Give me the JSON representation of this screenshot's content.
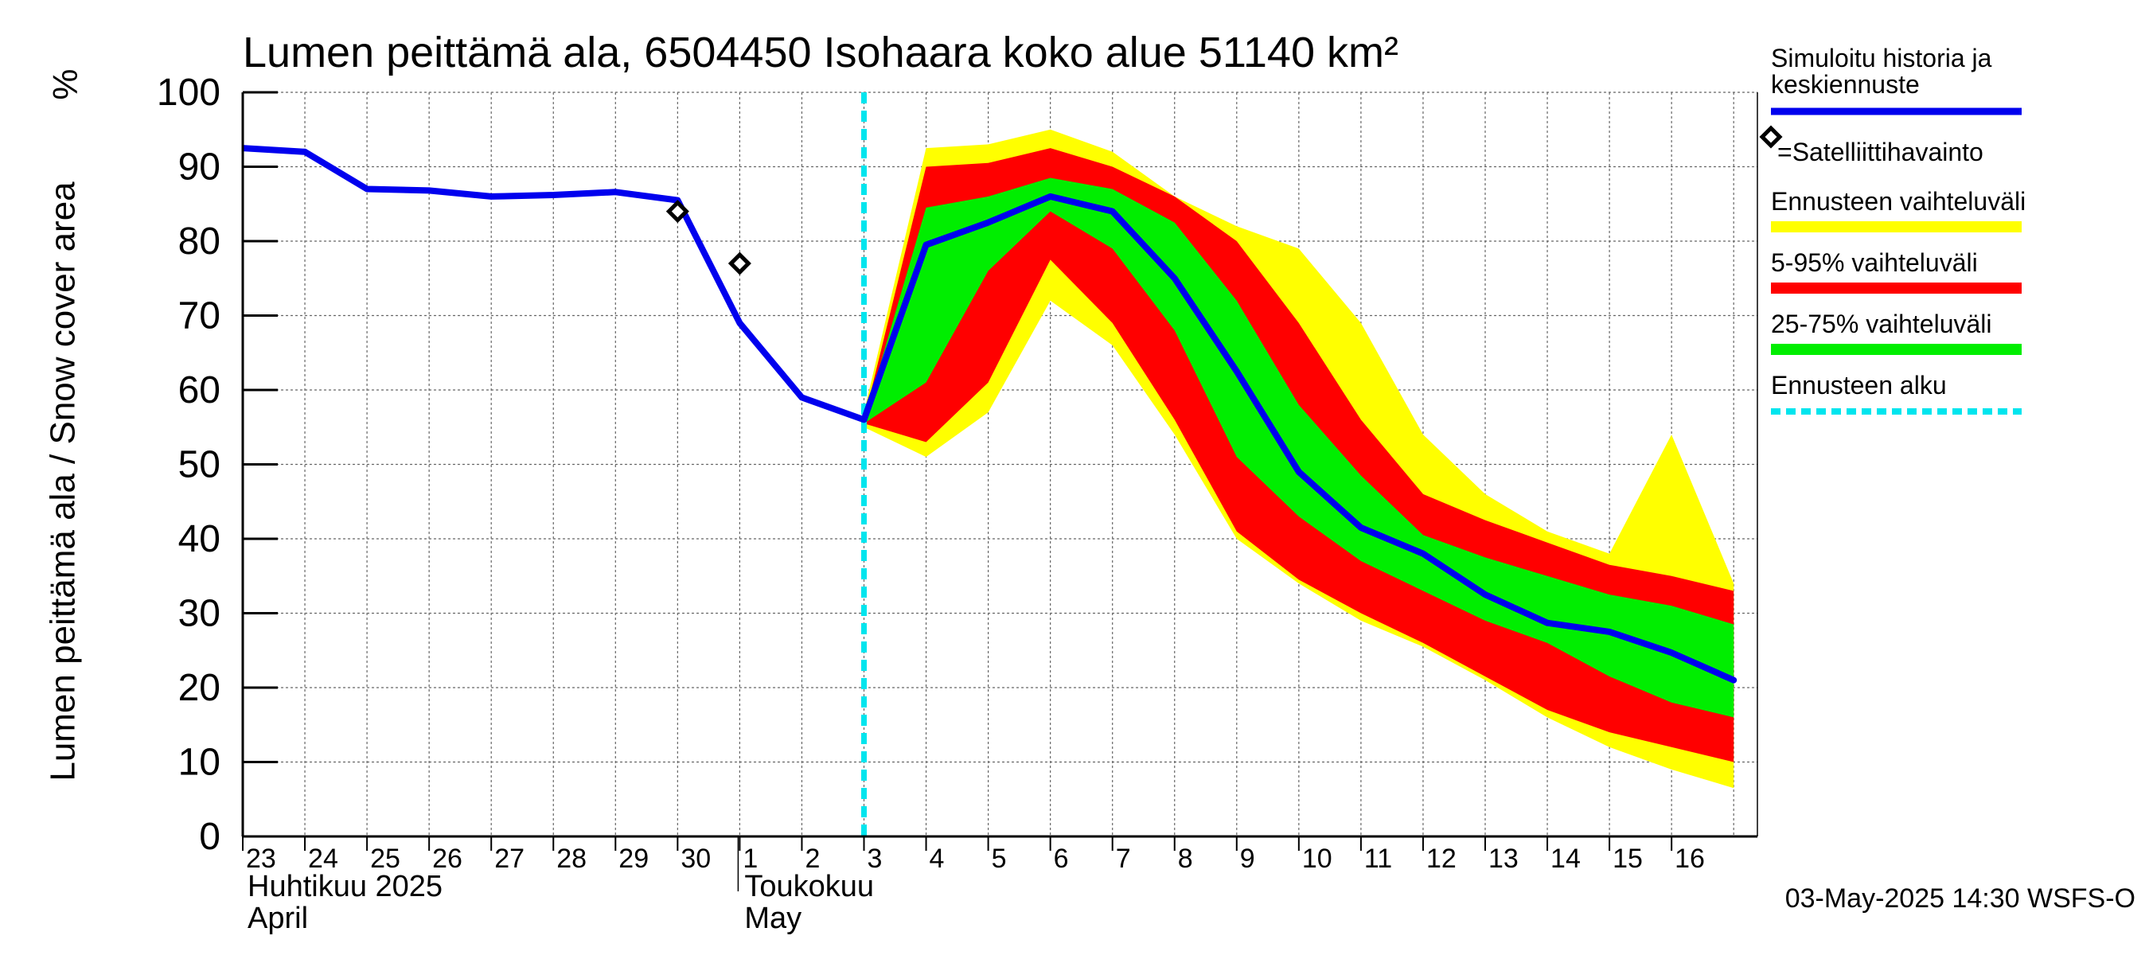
{
  "chart_data": {
    "type": "area",
    "title": "Lumen peittämä ala, 6504450 Isohaara koko alue 51140 km²",
    "ylabel": "Lumen peittämä ala / Snow cover area",
    "yunit": "%",
    "ylim": [
      0,
      100
    ],
    "yticks": [
      0,
      10,
      20,
      30,
      40,
      50,
      60,
      70,
      80,
      90,
      100
    ],
    "x_dates": [
      "23",
      "24",
      "25",
      "26",
      "27",
      "28",
      "29",
      "30",
      "1",
      "2",
      "3",
      "4",
      "5",
      "6",
      "7",
      "8",
      "9",
      "10",
      "11",
      "12",
      "13",
      "14",
      "15",
      "16"
    ],
    "month_labels": [
      {
        "fi": "Huhtikuu  2025",
        "en": "April"
      },
      {
        "fi": "Toukokuu",
        "en": "May"
      }
    ],
    "forecast_start_day": 10,
    "series": [
      {
        "name": "Ennusteen vaihteluväli",
        "kind": "band",
        "color": "#ffff00",
        "x": [
          10,
          11,
          12,
          13,
          14,
          15,
          16,
          17,
          18,
          19,
          20,
          21,
          22,
          23,
          24
        ],
        "upper": [
          57,
          92.5,
          93,
          95,
          92,
          86,
          82,
          79,
          69,
          54,
          46,
          41,
          38,
          54,
          34
        ],
        "lower": [
          55,
          51,
          57,
          72,
          66,
          54,
          40,
          34,
          29,
          25.5,
          21,
          16,
          12,
          9,
          6.5
        ]
      },
      {
        "name": "5-95% vaihteluväli",
        "kind": "band",
        "color": "#ff0000",
        "x": [
          10,
          11,
          12,
          13,
          14,
          15,
          16,
          17,
          18,
          19,
          20,
          21,
          22,
          23,
          24
        ],
        "upper": [
          56,
          90,
          90.5,
          92.5,
          90,
          86,
          80,
          69,
          56,
          46,
          42.5,
          39.5,
          36.5,
          35,
          33
        ],
        "lower": [
          55.5,
          53,
          61,
          77.5,
          69,
          56,
          41,
          34.5,
          30,
          26,
          21.5,
          17,
          14,
          12,
          10
        ]
      },
      {
        "name": "25-75% vaihteluväli",
        "kind": "band",
        "color": "#00ee00",
        "x": [
          10,
          11,
          12,
          13,
          14,
          15,
          16,
          17,
          18,
          19,
          20,
          21,
          22,
          23,
          24
        ],
        "upper": [
          56,
          84.5,
          86,
          88.5,
          87,
          82.5,
          72,
          58,
          48.5,
          40.5,
          37.5,
          35,
          32.5,
          31,
          28.5
        ],
        "lower": [
          55.5,
          61,
          76,
          84,
          79,
          68,
          51,
          43,
          37,
          33,
          29,
          26,
          21.5,
          18,
          16
        ]
      },
      {
        "name": "Simuloitu historia ja keskiennuste",
        "kind": "line",
        "color": "#0000ee",
        "x": [
          0,
          1,
          2,
          3,
          4,
          5,
          6,
          7,
          8,
          9,
          10,
          11,
          12,
          13,
          14,
          15,
          16,
          17,
          18,
          19,
          20,
          21,
          22,
          23,
          24
        ],
        "values": [
          92.5,
          92,
          87,
          86.8,
          86,
          86.2,
          86.6,
          85.5,
          69,
          59,
          56,
          79.5,
          82.5,
          86,
          84,
          75,
          62.5,
          49,
          41.5,
          38,
          32.5,
          28.7,
          27.5,
          24.7,
          21
        ]
      },
      {
        "name": "=Satelliittihavainto",
        "kind": "markers",
        "color": "#000000",
        "x": [
          7,
          8
        ],
        "values": [
          84,
          77
        ]
      }
    ],
    "legend": [
      {
        "label": "Simuloitu historia ja keskiennuste",
        "style": "line",
        "color": "#0000ee"
      },
      {
        "label": "=Satelliittihavainto",
        "style": "diamond",
        "color": "#000000"
      },
      {
        "label": "Ennusteen vaihteluväli",
        "style": "band",
        "color": "#ffff00"
      },
      {
        "label": "5-95% vaihteluväli",
        "style": "band",
        "color": "#ff0000"
      },
      {
        "label": "25-75% vaihteluväli",
        "style": "band",
        "color": "#00ee00"
      },
      {
        "label": "Ennusteen alku",
        "style": "dashed",
        "color": "#00e5ee"
      }
    ],
    "footer": "03-May-2025 14:30 WSFS-O",
    "grid": true,
    "legend_position": "right"
  }
}
